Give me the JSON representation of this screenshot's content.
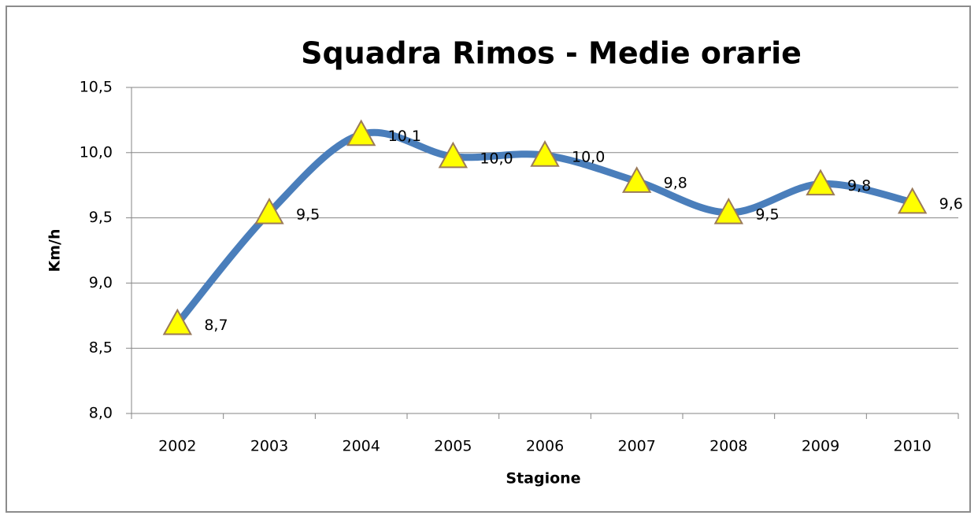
{
  "chart_data": {
    "type": "line",
    "title": "Squadra Rimos - Medie orarie",
    "x_label": "Stagione",
    "y_label": "Km/h",
    "categories": [
      "2002",
      "2003",
      "2004",
      "2005",
      "2006",
      "2007",
      "2008",
      "2009",
      "2010"
    ],
    "values": [
      8.69,
      9.54,
      10.14,
      9.97,
      9.98,
      9.78,
      9.54,
      9.76,
      9.62
    ],
    "value_labels": [
      "8,7",
      "9,5",
      "10,1",
      "10,0",
      "10,0",
      "9,8",
      "9,5",
      "9,8",
      "9,6"
    ],
    "color": "#4a7ebb",
    "marker_color": "#ffff00",
    "smooth": true,
    "ylim": [
      8.0,
      10.5
    ],
    "yticks": [
      {
        "value": 8.0,
        "label": "8,0"
      },
      {
        "value": 8.5,
        "label": "8,5"
      },
      {
        "value": 9.0,
        "label": "9,0"
      },
      {
        "value": 9.5,
        "label": "9,5"
      },
      {
        "value": 10.0,
        "label": "10,0"
      },
      {
        "value": 10.5,
        "label": "10,5"
      }
    ],
    "grid": true
  }
}
